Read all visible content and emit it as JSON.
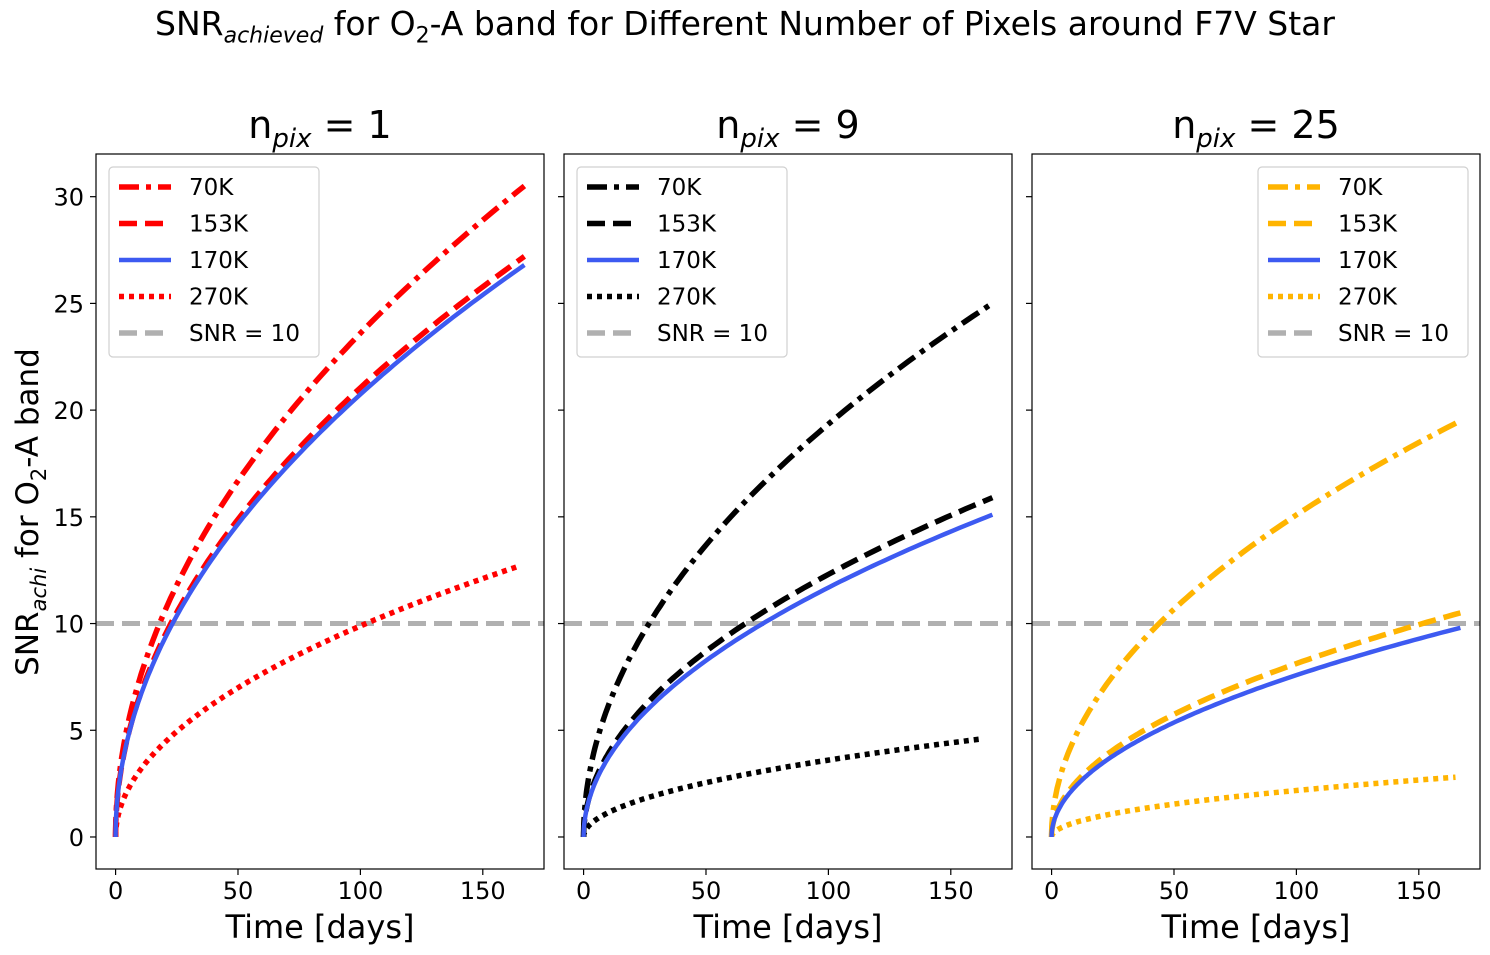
{
  "figure": {
    "suptitle": {
      "pre": "SNR",
      "sub1": "achieved",
      "mid": " for O",
      "sub2": "2",
      "post": "-A band for Different Number of Pixels around F7V Star"
    },
    "ylabel": {
      "pre": "SNR",
      "sub1": "achi",
      "mid": " for O",
      "sub2": "2",
      "post": "-A band"
    },
    "xlabel": "Time [days]"
  },
  "chart_data": [
    {
      "type": "line",
      "title": {
        "pre": "n",
        "sub": "pix",
        "post": " = 1"
      },
      "xlabel": "Time [days]",
      "ylabel": "SNRachi for O2-A band",
      "xlim": [
        -8,
        175
      ],
      "ylim": [
        -1.5,
        32
      ],
      "xticks": [
        0,
        50,
        100,
        150
      ],
      "yticks": [
        0,
        5,
        10,
        15,
        20,
        25,
        30
      ],
      "show_ytick_labels": true,
      "grid": false,
      "legend": "upper-left",
      "hline": {
        "y": 10,
        "label": "SNR = 10",
        "color": "#b0b0b0"
      },
      "series": [
        {
          "name": "70K",
          "color": "#ff0000",
          "style": "dashdot",
          "x_end": 167,
          "y_end": 30.5
        },
        {
          "name": "153K",
          "color": "#ff0000",
          "style": "dashed",
          "x_end": 167,
          "y_end": 27.2
        },
        {
          "name": "170K",
          "color": "#3d5af1",
          "style": "solid",
          "x_end": 167,
          "y_end": 26.8
        },
        {
          "name": "270K",
          "color": "#ff0000",
          "style": "dotted",
          "x_end": 165,
          "y_end": 12.7
        }
      ]
    },
    {
      "type": "line",
      "title": {
        "pre": "n",
        "sub": "pix",
        "post": " = 9"
      },
      "xlabel": "Time [days]",
      "xlim": [
        -8,
        175
      ],
      "ylim": [
        -1.5,
        32
      ],
      "xticks": [
        0,
        50,
        100,
        150
      ],
      "yticks": [
        0,
        5,
        10,
        15,
        20,
        25,
        30
      ],
      "show_ytick_labels": false,
      "grid": false,
      "legend": "upper-left",
      "hline": {
        "y": 10,
        "label": "SNR = 10",
        "color": "#b0b0b0"
      },
      "series": [
        {
          "name": "70K",
          "color": "#000000",
          "style": "dashdot",
          "x_end": 167,
          "y_end": 25.0
        },
        {
          "name": "153K",
          "color": "#000000",
          "style": "dashed",
          "x_end": 167,
          "y_end": 15.9
        },
        {
          "name": "170K",
          "color": "#3d5af1",
          "style": "solid",
          "x_end": 167,
          "y_end": 15.1
        },
        {
          "name": "270K",
          "color": "#000000",
          "style": "dotted",
          "x_end": 163,
          "y_end": 4.6
        }
      ]
    },
    {
      "type": "line",
      "title": {
        "pre": "n",
        "sub": "pix",
        "post": " = 25"
      },
      "xlabel": "Time [days]",
      "xlim": [
        -8,
        175
      ],
      "ylim": [
        -1.5,
        32
      ],
      "xticks": [
        0,
        50,
        100,
        150
      ],
      "yticks": [
        0,
        5,
        10,
        15,
        20,
        25,
        30
      ],
      "show_ytick_labels": false,
      "grid": false,
      "legend": "upper-right",
      "hline": {
        "y": 10,
        "label": "SNR = 10",
        "color": "#b0b0b0"
      },
      "series": [
        {
          "name": "70K",
          "color": "#ffb400",
          "style": "dashdot",
          "x_end": 167,
          "y_end": 19.5
        },
        {
          "name": "153K",
          "color": "#ffb400",
          "style": "dashed",
          "x_end": 167,
          "y_end": 10.5
        },
        {
          "name": "170K",
          "color": "#3d5af1",
          "style": "solid",
          "x_end": 167,
          "y_end": 9.8
        },
        {
          "name": "270K",
          "color": "#ffb400",
          "style": "dotted",
          "x_end": 165,
          "y_end": 2.8
        }
      ]
    }
  ]
}
